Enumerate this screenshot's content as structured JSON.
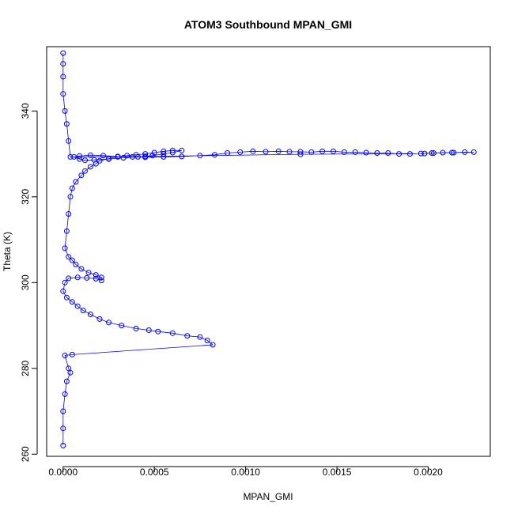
{
  "chart_data": {
    "type": "scatter",
    "title": "ATOM3 Southbound MPAN_GMI",
    "xlabel": "MPAN_GMI",
    "ylabel": "Theta (K)",
    "xlim": [
      -9e-05,
      0.00234
    ],
    "ylim": [
      259.5,
      355
    ],
    "x_ticks": [
      {
        "value": 0.0,
        "label": "0.0000"
      },
      {
        "value": 0.0005,
        "label": "0.0005"
      },
      {
        "value": 0.001,
        "label": "0.0010"
      },
      {
        "value": 0.0015,
        "label": "0.0015"
      },
      {
        "value": 0.002,
        "label": "0.0020"
      }
    ],
    "y_ticks": [
      {
        "value": 260,
        "label": "260"
      },
      {
        "value": 280,
        "label": "280"
      },
      {
        "value": 300,
        "label": "300"
      },
      {
        "value": 320,
        "label": "320"
      },
      {
        "value": 340,
        "label": "340"
      }
    ],
    "grid": false,
    "legend": "none",
    "color": "#0000ff",
    "marker": "open-circle",
    "connected_by_line": true,
    "series": [
      {
        "points": [
          [
            0.0,
            262
          ],
          [
            0.0,
            266
          ],
          [
            0.0,
            270
          ],
          [
            1e-05,
            274
          ],
          [
            2e-05,
            277
          ],
          [
            4e-05,
            279
          ],
          [
            3e-05,
            280
          ],
          [
            1e-05,
            283
          ],
          [
            5e-05,
            283.2
          ],
          [
            0.00082,
            285.5
          ],
          [
            0.00079,
            286.5
          ],
          [
            0.00075,
            287.3
          ],
          [
            0.00068,
            287.6
          ],
          [
            0.0006,
            288.2
          ],
          [
            0.00052,
            288.6
          ],
          [
            0.00047,
            288.9
          ],
          [
            0.0004,
            289.3
          ],
          [
            0.00032,
            290.0
          ],
          [
            0.00025,
            290.7
          ],
          [
            0.0002,
            291.5
          ],
          [
            0.00015,
            292.6
          ],
          [
            0.00011,
            293.5
          ],
          [
            8e-05,
            294.5
          ],
          [
            5e-05,
            295.5
          ],
          [
            2e-05,
            296.5
          ],
          [
            0.0,
            298
          ],
          [
            1e-05,
            300
          ],
          [
            3e-05,
            301
          ],
          [
            8e-05,
            301.2
          ],
          [
            0.00013,
            301.1
          ],
          [
            0.00018,
            300.9
          ],
          [
            0.00021,
            300.5
          ],
          [
            0.00021,
            301.2
          ],
          [
            0.00018,
            301.8
          ],
          [
            0.00014,
            302.3
          ],
          [
            0.0001,
            303.2
          ],
          [
            7e-05,
            304.2
          ],
          [
            5e-05,
            305.2
          ],
          [
            3e-05,
            306
          ],
          [
            1e-05,
            308
          ],
          [
            2e-05,
            312
          ],
          [
            3e-05,
            316
          ],
          [
            4e-05,
            320
          ],
          [
            5e-05,
            322
          ],
          [
            7e-05,
            323.5
          ],
          [
            0.0001,
            325
          ],
          [
            0.00012,
            326
          ],
          [
            0.00015,
            327
          ],
          [
            0.00018,
            327.7
          ],
          [
            0.0002,
            328.4
          ],
          [
            0.00025,
            328.9
          ],
          [
            0.0003,
            329.3
          ],
          [
            0.00035,
            329.6
          ],
          [
            0.0004,
            329.8
          ],
          [
            0.00045,
            330.0
          ],
          [
            0.0005,
            330.3
          ],
          [
            0.00055,
            330.6
          ],
          [
            0.0006,
            330.8
          ],
          [
            0.00065,
            330.8
          ],
          [
            0.0006,
            330.3
          ],
          [
            0.00055,
            330.0
          ],
          [
            0.00049,
            329.6
          ],
          [
            0.00041,
            329.3
          ],
          [
            0.00033,
            329.1
          ],
          [
            0.00025,
            328.8
          ],
          [
            0.00017,
            328.6
          ],
          [
            0.00012,
            328.5
          ],
          [
            9e-05,
            328.8
          ],
          [
            6e-05,
            329.3
          ],
          [
            9e-05,
            329.5
          ],
          [
            0.00015,
            329.7
          ],
          [
            0.00022,
            329.6
          ],
          [
            0.0003,
            329.4
          ],
          [
            0.00038,
            329.3
          ],
          [
            0.00045,
            329.2
          ],
          [
            0.00055,
            329.3
          ],
          [
            0.00065,
            329.4
          ],
          [
            0.00075,
            329.6
          ],
          [
            0.00083,
            329.8
          ],
          [
            0.0009,
            330.2
          ],
          [
            0.00097,
            330.4
          ],
          [
            0.00104,
            330.6
          ],
          [
            0.00111,
            330.5
          ],
          [
            0.00118,
            330.6
          ],
          [
            0.00124,
            330.5
          ],
          [
            0.0013,
            330.5
          ],
          [
            0.00136,
            330.4
          ],
          [
            0.00142,
            330.6
          ],
          [
            0.00148,
            330.6
          ],
          [
            0.00154,
            330.4
          ],
          [
            0.0016,
            330.4
          ],
          [
            0.00166,
            330.3
          ],
          [
            0.00172,
            330.2
          ],
          [
            0.00178,
            330.2
          ],
          [
            0.00184,
            330.0
          ],
          [
            0.0019,
            330.0
          ],
          [
            0.00196,
            330.1
          ],
          [
            0.00202,
            330.2
          ],
          [
            0.00208,
            330.3
          ],
          [
            0.00214,
            330.3
          ],
          [
            0.0022,
            330.4
          ],
          [
            0.00225,
            330.4
          ],
          [
            0.00213,
            330.3
          ],
          [
            0.00203,
            330.2
          ],
          [
            0.00198,
            330.1
          ],
          [
            0.0013,
            329.9
          ],
          [
            0.00045,
            329.4
          ],
          [
            4e-05,
            329.3
          ],
          [
            3e-05,
            333
          ],
          [
            2e-05,
            337
          ],
          [
            1e-05,
            340
          ],
          [
            0.0,
            344
          ],
          [
            0.0,
            348
          ],
          [
            0.0,
            351
          ],
          [
            0.0,
            353.5
          ]
        ]
      }
    ]
  }
}
